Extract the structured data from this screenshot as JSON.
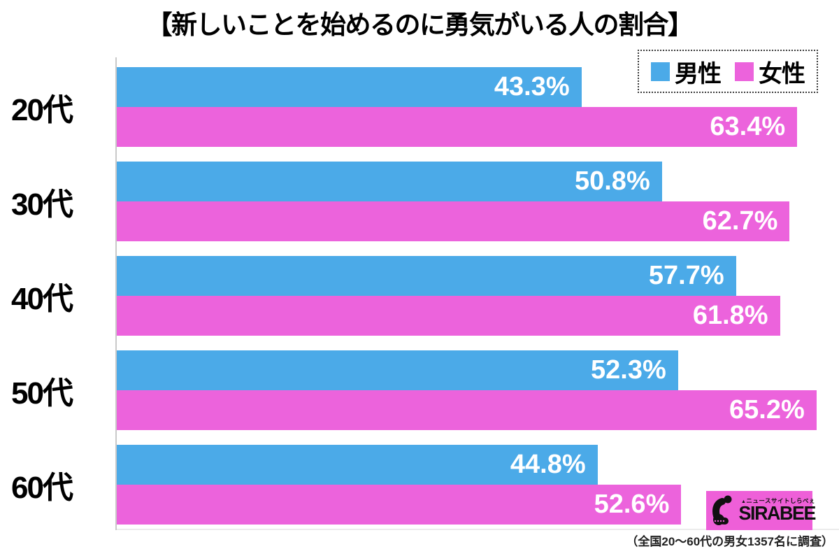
{
  "chart_data": {
    "type": "bar",
    "orientation": "horizontal",
    "title": "【新しいことを始めるのに勇気がいる人の割合】",
    "categories": [
      "20代",
      "30代",
      "40代",
      "50代",
      "60代"
    ],
    "series": [
      {
        "name": "男性",
        "color": "#4BAAE8",
        "values": [
          43.3,
          50.8,
          57.7,
          52.3,
          44.8
        ]
      },
      {
        "name": "女性",
        "color": "#EC63DC",
        "values": [
          63.4,
          62.7,
          61.8,
          65.2,
          52.6
        ]
      }
    ],
    "value_suffix": "%",
    "xlim": [
      0,
      67.3
    ],
    "grid": false,
    "legend_position": "top-right",
    "bar_label_color": "#ffffff",
    "axis_line_color": "#c9c9c9"
  },
  "footer": {
    "note": "（全国20〜60代の男女1357名に調査）"
  },
  "logo": {
    "brand": "SIRABEE",
    "tagline": "ニュースサイトしらべぇ",
    "bg_color": "#EE5FD8"
  }
}
